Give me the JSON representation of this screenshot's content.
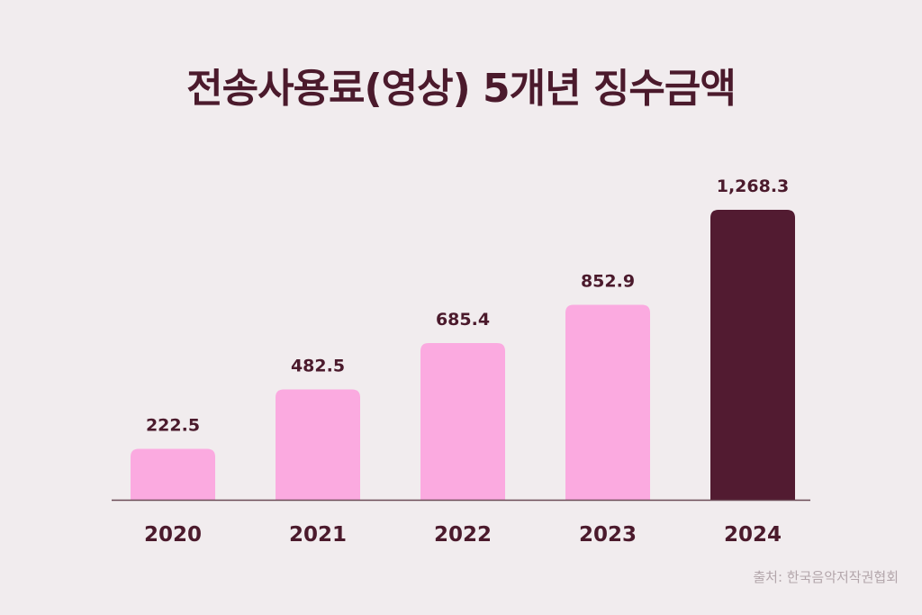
{
  "chart_data": {
    "type": "bar",
    "title": "전송사용료(영상) 5개년 징수금액",
    "categories": [
      "2020",
      "2021",
      "2022",
      "2023",
      "2024"
    ],
    "values": [
      222.5,
      482.5,
      685.4,
      852.9,
      1268.3
    ],
    "value_labels": [
      "222.5",
      "482.5",
      "685.4",
      "852.9",
      "1,268.3"
    ],
    "xlabel": "",
    "ylabel": "",
    "ylim": [
      0,
      1268.3
    ],
    "grid": false,
    "legend": "none",
    "colors": {
      "default_bar": "#fbaae0",
      "highlight_bar": "#521b31",
      "label": "#4b1a2c",
      "axis": "#6b4a55"
    },
    "highlight_index": 4
  },
  "source": "출처: 한국음악저작권협회"
}
